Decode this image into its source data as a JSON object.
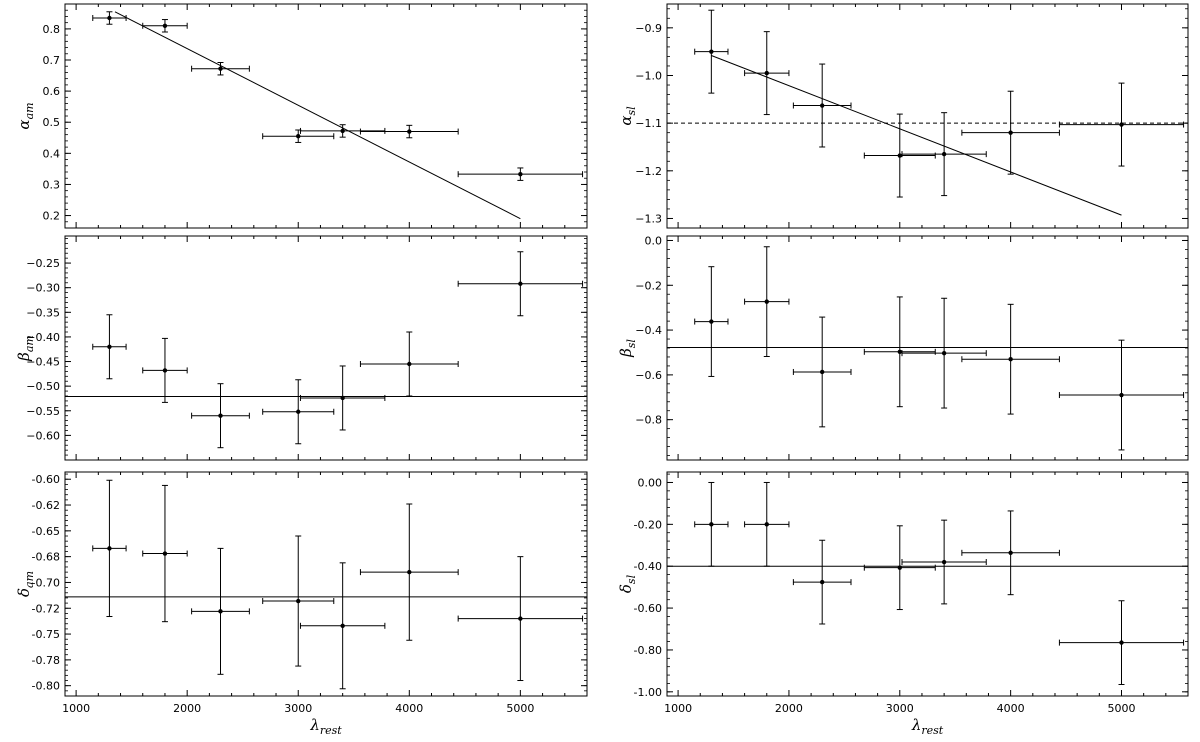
{
  "chart_data": [
    {
      "id": "alpha_am",
      "type": "scatter",
      "ylabel_main": "α",
      "ylabel_sub": "am",
      "xlabel_main": "",
      "xlabel_sub": "",
      "xlim": [
        900,
        5600
      ],
      "ylim": [
        0.16,
        0.88
      ],
      "xticks": [
        1000,
        2000,
        3000,
        4000,
        5000
      ],
      "show_xticklabels": false,
      "yticks": [
        0.2,
        0.3,
        0.4,
        0.5,
        0.6,
        0.7,
        0.8
      ],
      "ytick_labels": [
        "0.2",
        "0.3",
        "0.4",
        "0.5",
        "0.6",
        "0.7",
        "0.8"
      ],
      "points": [
        {
          "x": 1300,
          "y": 0.835,
          "xerr": 150,
          "yerr": 0.02
        },
        {
          "x": 1800,
          "y": 0.81,
          "xerr": 200,
          "yerr": 0.02
        },
        {
          "x": 2300,
          "y": 0.672,
          "xerr": 260,
          "yerr": 0.02
        },
        {
          "x": 3000,
          "y": 0.455,
          "xerr": 320,
          "yerr": 0.02
        },
        {
          "x": 3400,
          "y": 0.472,
          "xerr": 380,
          "yerr": 0.02
        },
        {
          "x": 4000,
          "y": 0.47,
          "xerr": 440,
          "yerr": 0.02
        },
        {
          "x": 5000,
          "y": 0.333,
          "xerr": 560,
          "yerr": 0.02
        }
      ],
      "lines": [
        {
          "kind": "segment",
          "x1": 1350,
          "y1": 0.855,
          "x2": 5000,
          "y2": 0.19,
          "style": "solid"
        }
      ]
    },
    {
      "id": "alpha_sl",
      "type": "scatter",
      "ylabel_main": "α",
      "ylabel_sub": "sl",
      "xlabel_main": "",
      "xlabel_sub": "",
      "xlim": [
        900,
        5600
      ],
      "ylim": [
        -1.32,
        -0.85
      ],
      "xticks": [
        1000,
        2000,
        3000,
        4000,
        5000
      ],
      "show_xticklabels": false,
      "yticks": [
        -1.3,
        -1.2,
        -1.1,
        -1.0,
        -0.9
      ],
      "ytick_labels": [
        "−1.3",
        "−1.2",
        "−1.1",
        "−1.0",
        "−0.9"
      ],
      "points": [
        {
          "x": 1300,
          "y": -0.95,
          "xerr": 150,
          "yerr": 0.087
        },
        {
          "x": 1800,
          "y": -0.995,
          "xerr": 200,
          "yerr": 0.087
        },
        {
          "x": 2300,
          "y": -1.063,
          "xerr": 260,
          "yerr": 0.087
        },
        {
          "x": 3000,
          "y": -1.168,
          "xerr": 320,
          "yerr": 0.087
        },
        {
          "x": 3400,
          "y": -1.165,
          "xerr": 380,
          "yerr": 0.087
        },
        {
          "x": 4000,
          "y": -1.12,
          "xerr": 440,
          "yerr": 0.087
        },
        {
          "x": 5000,
          "y": -1.103,
          "xerr": 560,
          "yerr": 0.087
        }
      ],
      "lines": [
        {
          "kind": "segment",
          "x1": 1300,
          "y1": -0.958,
          "x2": 5000,
          "y2": -1.293,
          "style": "solid"
        },
        {
          "kind": "hline",
          "y": -1.1,
          "style": "dashed"
        }
      ]
    },
    {
      "id": "beta_am",
      "type": "scatter",
      "ylabel_main": "β",
      "ylabel_sub": "am",
      "xlabel_main": "",
      "xlabel_sub": "",
      "xlim": [
        900,
        5600
      ],
      "ylim": [
        -0.65,
        -0.195
      ],
      "xticks": [
        1000,
        2000,
        3000,
        4000,
        5000
      ],
      "show_xticklabels": false,
      "yticks": [
        -0.6,
        -0.55,
        -0.5,
        -0.45,
        -0.4,
        -0.35,
        -0.3,
        -0.25
      ],
      "ytick_labels": [
        "−0.60",
        "−0.55",
        "−0.50",
        "−0.45",
        "−0.40",
        "−0.35",
        "−0.30",
        "−0.25"
      ],
      "points": [
        {
          "x": 1300,
          "y": -0.42,
          "xerr": 150,
          "yerr": 0.065
        },
        {
          "x": 1800,
          "y": -0.468,
          "xerr": 200,
          "yerr": 0.065
        },
        {
          "x": 2300,
          "y": -0.56,
          "xerr": 260,
          "yerr": 0.065
        },
        {
          "x": 3000,
          "y": -0.552,
          "xerr": 320,
          "yerr": 0.065
        },
        {
          "x": 3400,
          "y": -0.524,
          "xerr": 380,
          "yerr": 0.065
        },
        {
          "x": 4000,
          "y": -0.455,
          "xerr": 440,
          "yerr": 0.065
        },
        {
          "x": 5000,
          "y": -0.292,
          "xerr": 560,
          "yerr": 0.065
        }
      ],
      "lines": [
        {
          "kind": "hline",
          "y": -0.521,
          "style": "solid"
        }
      ]
    },
    {
      "id": "beta_sl",
      "type": "scatter",
      "ylabel_main": "β",
      "ylabel_sub": "sl",
      "xlabel_main": "",
      "xlabel_sub": "",
      "xlim": [
        900,
        5600
      ],
      "ylim": [
        -0.98,
        0.02
      ],
      "xticks": [
        1000,
        2000,
        3000,
        4000,
        5000
      ],
      "show_xticklabels": false,
      "yticks": [
        -0.8,
        -0.6,
        -0.4,
        -0.2,
        0.0
      ],
      "ytick_labels": [
        "−0.8",
        "−0.6",
        "−0.4",
        "−0.2",
        "0.0"
      ],
      "points": [
        {
          "x": 1300,
          "y": -0.362,
          "xerr": 150,
          "yerr": 0.245
        },
        {
          "x": 1800,
          "y": -0.273,
          "xerr": 200,
          "yerr": 0.245
        },
        {
          "x": 2300,
          "y": -0.587,
          "xerr": 260,
          "yerr": 0.245
        },
        {
          "x": 3000,
          "y": -0.497,
          "xerr": 320,
          "yerr": 0.245
        },
        {
          "x": 3400,
          "y": -0.503,
          "xerr": 380,
          "yerr": 0.245
        },
        {
          "x": 4000,
          "y": -0.53,
          "xerr": 440,
          "yerr": 0.245
        },
        {
          "x": 5000,
          "y": -0.69,
          "xerr": 560,
          "yerr": 0.245
        }
      ],
      "lines": [
        {
          "kind": "hline",
          "y": -0.478,
          "style": "solid"
        }
      ]
    },
    {
      "id": "delta_am",
      "type": "scatter",
      "ylabel_main": "δ",
      "ylabel_sub": "am",
      "xlabel_main": "λ",
      "xlabel_sub": "rest",
      "xlim": [
        900,
        5600
      ],
      "ylim": [
        -0.81,
        -0.593
      ],
      "xticks": [
        1000,
        2000,
        3000,
        4000,
        5000
      ],
      "show_xticklabels": true,
      "xtick_labels": [
        "1000",
        "2000",
        "3000",
        "4000",
        "5000"
      ],
      "yticks": [
        -0.8,
        -0.775,
        -0.75,
        -0.725,
        -0.7,
        -0.675,
        -0.65,
        -0.625,
        -0.6
      ],
      "ytick_labels": [
        "-0.80",
        "-0.78",
        "-0.75",
        "-0.72",
        "-0.70",
        "-0.68",
        "-0.65",
        "-0.62",
        "-0.60"
      ],
      "points": [
        {
          "x": 1300,
          "y": -0.667,
          "xerr": 150,
          "yerr": 0.066
        },
        {
          "x": 1800,
          "y": -0.672,
          "xerr": 200,
          "yerr": 0.066
        },
        {
          "x": 2300,
          "y": -0.728,
          "xerr": 260,
          "yerr": 0.061
        },
        {
          "x": 3000,
          "y": -0.718,
          "xerr": 320,
          "yerr": 0.063
        },
        {
          "x": 3400,
          "y": -0.742,
          "xerr": 380,
          "yerr": 0.061
        },
        {
          "x": 4000,
          "y": -0.69,
          "xerr": 440,
          "yerr": 0.066
        },
        {
          "x": 5000,
          "y": -0.735,
          "xerr": 560,
          "yerr": 0.06
        }
      ],
      "lines": [
        {
          "kind": "hline",
          "y": -0.714,
          "style": "solid"
        }
      ]
    },
    {
      "id": "delta_sl",
      "type": "scatter",
      "ylabel_main": "δ",
      "ylabel_sub": "sl",
      "xlabel_main": "λ",
      "xlabel_sub": "rest",
      "xlim": [
        900,
        5600
      ],
      "ylim": [
        -1.02,
        0.05
      ],
      "xticks": [
        1000,
        2000,
        3000,
        4000,
        5000
      ],
      "show_xticklabels": true,
      "xtick_labels": [
        "1000",
        "2000",
        "3000",
        "4000",
        "5000"
      ],
      "yticks": [
        -1.0,
        -0.8,
        -0.6,
        -0.4,
        -0.2,
        0.0
      ],
      "ytick_labels": [
        "-1.00",
        "-0.80",
        "-0.60",
        "-0.40",
        "-0.20",
        "0.00"
      ],
      "points": [
        {
          "x": 1300,
          "y": -0.2,
          "xerr": 150,
          "yerr": 0.2
        },
        {
          "x": 1800,
          "y": -0.2,
          "xerr": 200,
          "yerr": 0.2
        },
        {
          "x": 2300,
          "y": -0.476,
          "xerr": 260,
          "yerr": 0.2
        },
        {
          "x": 3000,
          "y": -0.407,
          "xerr": 320,
          "yerr": 0.2
        },
        {
          "x": 3400,
          "y": -0.38,
          "xerr": 380,
          "yerr": 0.2
        },
        {
          "x": 4000,
          "y": -0.336,
          "xerr": 440,
          "yerr": 0.2
        },
        {
          "x": 5000,
          "y": -0.765,
          "xerr": 560,
          "yerr": 0.2
        }
      ],
      "lines": [
        {
          "kind": "hline",
          "y": -0.4,
          "style": "solid"
        }
      ]
    }
  ]
}
